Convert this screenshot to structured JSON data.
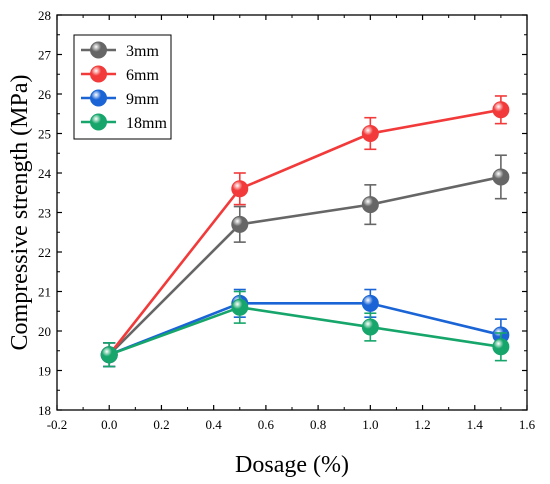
{
  "chart_data": {
    "type": "line",
    "xlabel": "Dosage (%)",
    "ylabel": "Compressive strength (MPa)",
    "xlim": [
      -0.2,
      1.6
    ],
    "ylim": [
      18,
      28
    ],
    "xticks": [
      "-0.2",
      "0.0",
      "0.2",
      "0.4",
      "0.6",
      "0.8",
      "1.0",
      "1.2",
      "1.4",
      "1.6"
    ],
    "yticks": [
      "18",
      "19",
      "20",
      "21",
      "22",
      "23",
      "24",
      "25",
      "26",
      "27",
      "28"
    ],
    "grid": false,
    "legend_position": "top-left",
    "x": [
      0.0,
      0.5,
      1.0,
      1.5
    ],
    "series": [
      {
        "name": "3mm",
        "color": "#666666",
        "values": [
          19.4,
          22.7,
          23.2,
          23.9
        ],
        "errors": [
          0.3,
          0.45,
          0.5,
          0.55
        ]
      },
      {
        "name": "6mm",
        "color": "#f23a3a",
        "values": [
          19.4,
          23.6,
          25.0,
          25.6
        ],
        "errors": [
          0.3,
          0.4,
          0.4,
          0.35
        ]
      },
      {
        "name": "9mm",
        "color": "#1a64d6",
        "values": [
          19.4,
          20.7,
          20.7,
          19.9
        ],
        "errors": [
          0.3,
          0.35,
          0.35,
          0.4
        ]
      },
      {
        "name": "18mm",
        "color": "#16a56a",
        "values": [
          19.4,
          20.6,
          20.1,
          19.6
        ],
        "errors": [
          0.3,
          0.4,
          0.35,
          0.35
        ]
      }
    ]
  }
}
